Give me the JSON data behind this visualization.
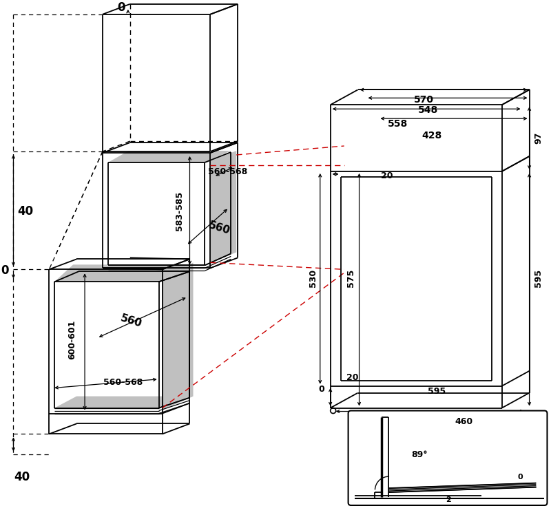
{
  "bg_color": "#ffffff",
  "line_color": "#000000",
  "gray_fill": "#c0c0c0",
  "red_dashed": "#cc0000",
  "fig_width": 8.0,
  "fig_height": 7.35,
  "dims": {
    "top_0": "0",
    "left_40_top": "40",
    "left_0": "0",
    "left_40_bot": "40",
    "upper_560_568": "560-568",
    "label_583_585": "583-585",
    "upper_560": "560",
    "lower_560": "560",
    "lower_560_568": "560-568",
    "label_600_601": "600-601",
    "label_570": "570",
    "label_548": "548",
    "label_558": "558",
    "label_428": "428",
    "label_20_top": "20",
    "label_97": "97",
    "label_530": "530",
    "label_575": "575",
    "label_595_right": "595",
    "label_0_mid": "0",
    "label_20_bot": "20",
    "label_595_bot": "595",
    "label_460": "460",
    "label_89deg": "89°",
    "label_0_detail": "0",
    "label_2": "2"
  }
}
